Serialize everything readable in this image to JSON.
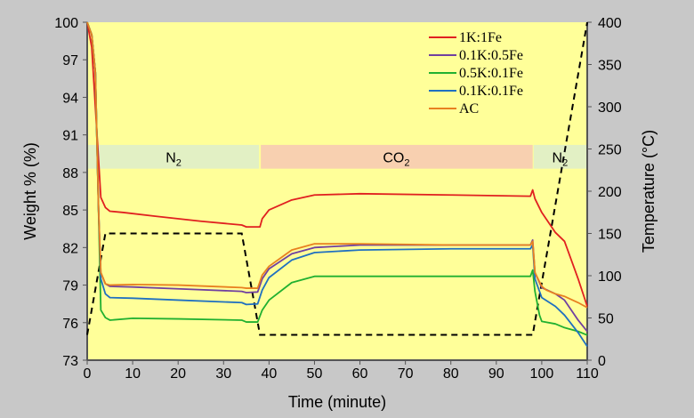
{
  "chart_data": {
    "type": "line",
    "xlabel": "Time (minute)",
    "ylabel": "Weight % (%)",
    "y2label": "Temperature  (°C)",
    "xlim": [
      0,
      110
    ],
    "ylim": [
      73,
      100
    ],
    "y2lim": [
      0,
      400
    ],
    "xticks": [
      0,
      10,
      20,
      30,
      40,
      50,
      60,
      70,
      80,
      90,
      100,
      110
    ],
    "yticks": [
      73,
      76,
      79,
      82,
      85,
      88,
      91,
      94,
      97,
      100
    ],
    "y2ticks": [
      0,
      50,
      100,
      150,
      200,
      250,
      300,
      350,
      400
    ],
    "legend_position": "top-right",
    "atmosphere_bands": [
      {
        "label": "N",
        "sub": "2",
        "from": 0,
        "to": 38,
        "color": "#e2f0c4"
      },
      {
        "label": "CO",
        "sub": "2",
        "from": 38,
        "to": 98,
        "color": "#f8d0b0"
      },
      {
        "label": "N",
        "sub": "2",
        "from": 98,
        "to": 110,
        "color": "#e2f0c4"
      }
    ],
    "band_range": [
      88.3,
      90.2
    ],
    "series": [
      {
        "name": "1K:1Fe",
        "color": "#e02020",
        "x": [
          0,
          1,
          2,
          3,
          4,
          5,
          8,
          15,
          25,
          34,
          35,
          38,
          38.5,
          40,
          45,
          50,
          60,
          80,
          97.5,
          98,
          98.5,
          100,
          103,
          105,
          108,
          110
        ],
        "y": [
          100,
          98,
          92,
          86,
          85.2,
          84.9,
          84.8,
          84.5,
          84.1,
          83.8,
          83.65,
          83.65,
          84.3,
          85,
          85.8,
          86.2,
          86.3,
          86.2,
          86.1,
          86.6,
          85.9,
          84.8,
          83.2,
          82.5,
          79.5,
          77.3
        ]
      },
      {
        "name": "0.1K:0.5Fe",
        "color": "#7040a0",
        "x": [
          0,
          1,
          1.8,
          2.5,
          3,
          4,
          5,
          10,
          20,
          34,
          35,
          37.5,
          38.5,
          40,
          45,
          50,
          60,
          80,
          97.5,
          98,
          98.5,
          100,
          103,
          105,
          108,
          110
        ],
        "y": [
          100,
          99,
          96,
          85,
          80,
          79.1,
          78.9,
          78.85,
          78.7,
          78.5,
          78.4,
          78.45,
          79.5,
          80.3,
          81.5,
          82,
          82.2,
          82.2,
          82.2,
          82.6,
          80,
          78.8,
          78.3,
          77.8,
          76.2,
          75.3
        ]
      },
      {
        "name": "0.5K:0.1Fe",
        "color": "#20b030",
        "x": [
          0,
          1,
          1.8,
          2.3,
          3,
          4,
          5,
          10,
          20,
          34,
          35,
          37.5,
          38.5,
          40,
          45,
          50,
          60,
          80,
          97.5,
          98,
          98.5,
          99.5,
          100,
          103,
          105,
          108,
          110
        ],
        "y": [
          100,
          99,
          96,
          88,
          77,
          76.4,
          76.2,
          76.35,
          76.3,
          76.2,
          76.05,
          76.05,
          77,
          77.8,
          79.2,
          79.7,
          79.7,
          79.7,
          79.7,
          80.2,
          78.5,
          76.6,
          76.1,
          75.9,
          75.6,
          75.3,
          75.0
        ]
      },
      {
        "name": "0.1K:0.1Fe",
        "color": "#2070c0",
        "x": [
          0,
          1,
          1.8,
          2.5,
          3,
          4,
          5,
          10,
          20,
          34,
          35,
          37.5,
          38.5,
          40,
          45,
          50,
          60,
          80,
          97.5,
          98,
          98.5,
          100,
          103,
          105,
          108,
          110
        ],
        "y": [
          100,
          99,
          96,
          85,
          79.5,
          78.3,
          78.0,
          77.95,
          77.8,
          77.6,
          77.45,
          77.5,
          78.6,
          79.6,
          81,
          81.6,
          81.8,
          81.9,
          81.9,
          82.2,
          79.5,
          78,
          77.3,
          76.6,
          75.2,
          74.1
        ]
      },
      {
        "name": "AC",
        "color": "#e88020",
        "x": [
          0,
          1,
          1.8,
          2.5,
          3,
          4,
          5,
          10,
          20,
          34,
          35,
          37.5,
          38.5,
          40,
          45,
          50,
          60,
          80,
          97.5,
          98,
          98.5,
          100,
          101,
          103,
          105,
          108,
          110
        ],
        "y": [
          100,
          99,
          96,
          85,
          80,
          79.1,
          79.0,
          79.05,
          79.0,
          78.8,
          78.75,
          78.75,
          79.8,
          80.5,
          81.8,
          82.3,
          82.3,
          82.2,
          82.2,
          82.5,
          80,
          78.9,
          78.6,
          78.3,
          78.1,
          77.6,
          77.2
        ]
      }
    ],
    "temperature": {
      "name": "Temperature",
      "color": "#000000",
      "x": [
        0,
        4,
        34,
        38,
        98,
        110
      ],
      "y": [
        30,
        150,
        150,
        30,
        30,
        400
      ]
    }
  }
}
